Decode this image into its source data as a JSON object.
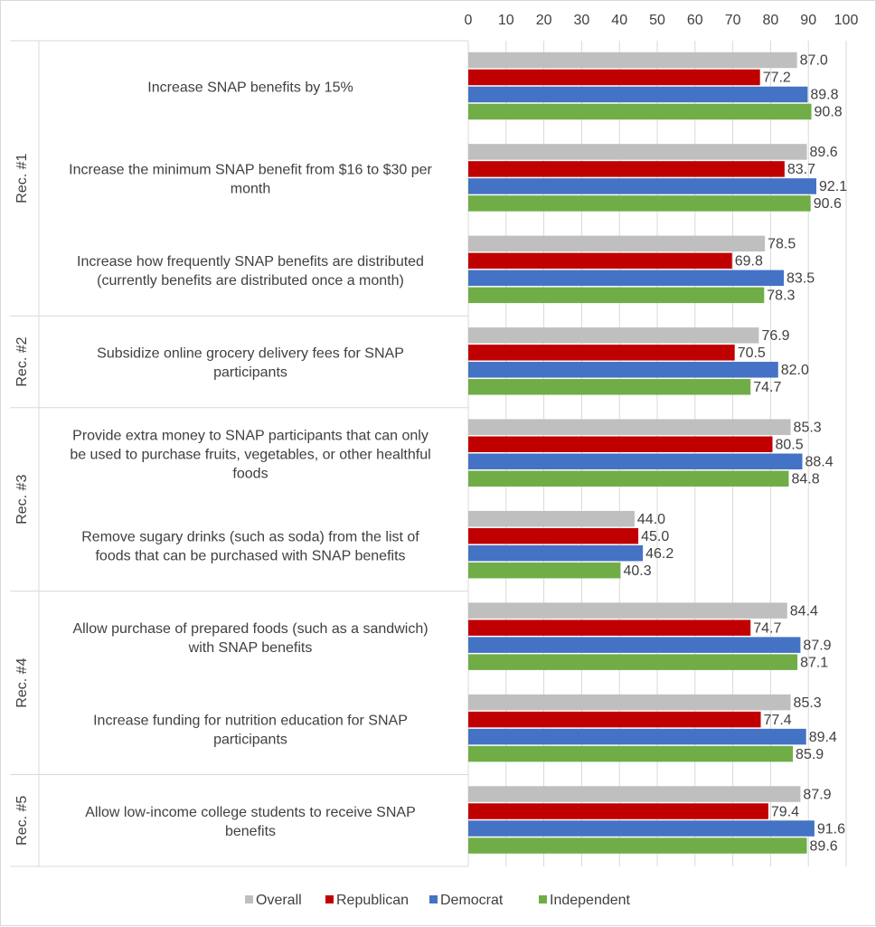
{
  "chart_data": {
    "type": "bar",
    "orientation": "horizontal",
    "xlim": [
      0,
      100
    ],
    "x_ticks": [
      0,
      10,
      20,
      30,
      40,
      50,
      60,
      70,
      80,
      90,
      100
    ],
    "x_axis_position": "top",
    "grid": true,
    "legend_position": "bottom",
    "series": [
      {
        "name": "Overall",
        "color": "#bfbfbf"
      },
      {
        "name": "Republican",
        "color": "#c00000"
      },
      {
        "name": "Democrat",
        "color": "#4472c4"
      },
      {
        "name": "Independent",
        "color": "#70ad47"
      }
    ],
    "groups": [
      {
        "label": "Rec. #1",
        "categories": [
          {
            "label_lines": [
              "Increase SNAP benefits by 15%"
            ],
            "values": [
              87.0,
              77.2,
              89.8,
              90.8
            ],
            "labels": [
              "87.0",
              "77.2",
              "89.8",
              "90.8"
            ]
          },
          {
            "label_lines": [
              "Increase the minimum SNAP benefit from $16 to $30 per",
              "month"
            ],
            "values": [
              89.6,
              83.7,
              92.1,
              90.6
            ],
            "labels": [
              "89.6",
              "83.7",
              "92.1",
              "90.6"
            ]
          },
          {
            "label_lines": [
              "Increase how frequently SNAP benefits are distributed",
              "(currently benefits are distributed once a month)"
            ],
            "values": [
              78.5,
              69.8,
              83.5,
              78.3
            ],
            "labels": [
              "78.5",
              "69.8",
              "83.5",
              "78.3"
            ]
          }
        ]
      },
      {
        "label": "Rec. #2",
        "categories": [
          {
            "label_lines": [
              "Subsidize online grocery delivery fees for SNAP",
              "participants"
            ],
            "values": [
              76.9,
              70.5,
              82.0,
              74.7
            ],
            "labels": [
              "76.9",
              "70.5",
              "82.0",
              "74.7"
            ]
          }
        ]
      },
      {
        "label": "Rec. #3",
        "categories": [
          {
            "label_lines": [
              "Provide extra money to SNAP participants that can only",
              "be used to purchase fruits, vegetables, or other healthful",
              "foods"
            ],
            "values": [
              85.3,
              80.5,
              88.4,
              84.8
            ],
            "labels": [
              "85.3",
              "80.5",
              "88.4",
              "84.8"
            ]
          },
          {
            "label_lines": [
              "Remove sugary drinks (such as soda) from the list of",
              "foods that can be purchased with SNAP benefits"
            ],
            "values": [
              44.0,
              45.0,
              46.2,
              40.3
            ],
            "labels": [
              "44.0",
              "45.0",
              "46.2",
              "40.3"
            ]
          }
        ]
      },
      {
        "label": "Rec. #4",
        "categories": [
          {
            "label_lines": [
              "Allow purchase of prepared foods (such as a sandwich)",
              "with SNAP benefits"
            ],
            "values": [
              84.4,
              74.7,
              87.9,
              87.1
            ],
            "labels": [
              "84.4",
              "74.7",
              "87.9",
              "87.1"
            ]
          },
          {
            "label_lines": [
              "Increase funding for nutrition education for SNAP",
              "participants"
            ],
            "values": [
              85.3,
              77.4,
              89.4,
              85.9
            ],
            "labels": [
              "85.3",
              "77.4",
              "89.4",
              "85.9"
            ]
          }
        ]
      },
      {
        "label": "Rec. #5",
        "categories": [
          {
            "label_lines": [
              "Allow low-income college students to receive SNAP",
              "benefits"
            ],
            "values": [
              87.9,
              79.4,
              91.6,
              89.6
            ],
            "labels": [
              "87.9",
              "79.4",
              "91.6",
              "89.6"
            ]
          }
        ]
      }
    ]
  }
}
